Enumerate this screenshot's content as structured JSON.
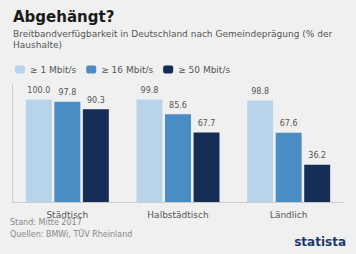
{
  "chart_data": {
    "type": "bar",
    "title": "Abgehängt?",
    "subtitle": "Breitbandverfügbarkeit in Deutschland nach Gemeindeprägung (% der Haushalte)",
    "categories": [
      "Städtisch",
      "Halbstädtisch",
      "Ländlich"
    ],
    "series": [
      {
        "name": "≥ 1 Mbit/s",
        "color": "#b8d4ea",
        "values": [
          100.0,
          99.8,
          98.8
        ],
        "value_labels": [
          "100.0",
          "99.8",
          "98.8"
        ]
      },
      {
        "name": "≥ 16 Mbit/s",
        "color": "#4a8cc4",
        "values": [
          97.8,
          85.6,
          67.6
        ],
        "value_labels": [
          "97.8",
          "85.6",
          "67.6"
        ]
      },
      {
        "name": "≥ 50 Mbit/s",
        "color": "#162d55",
        "values": [
          90.3,
          67.7,
          36.2
        ],
        "value_labels": [
          "90.3",
          "67.7",
          "36.2"
        ]
      }
    ],
    "ylim": [
      0,
      115
    ],
    "data_labels": true,
    "tick_labels": "x",
    "grid": false,
    "legend": "top",
    "annotations": [
      "Stand: Mitte 2017",
      "Quellen: BMWi, TÜV Rheinland",
      "statista"
    ]
  }
}
